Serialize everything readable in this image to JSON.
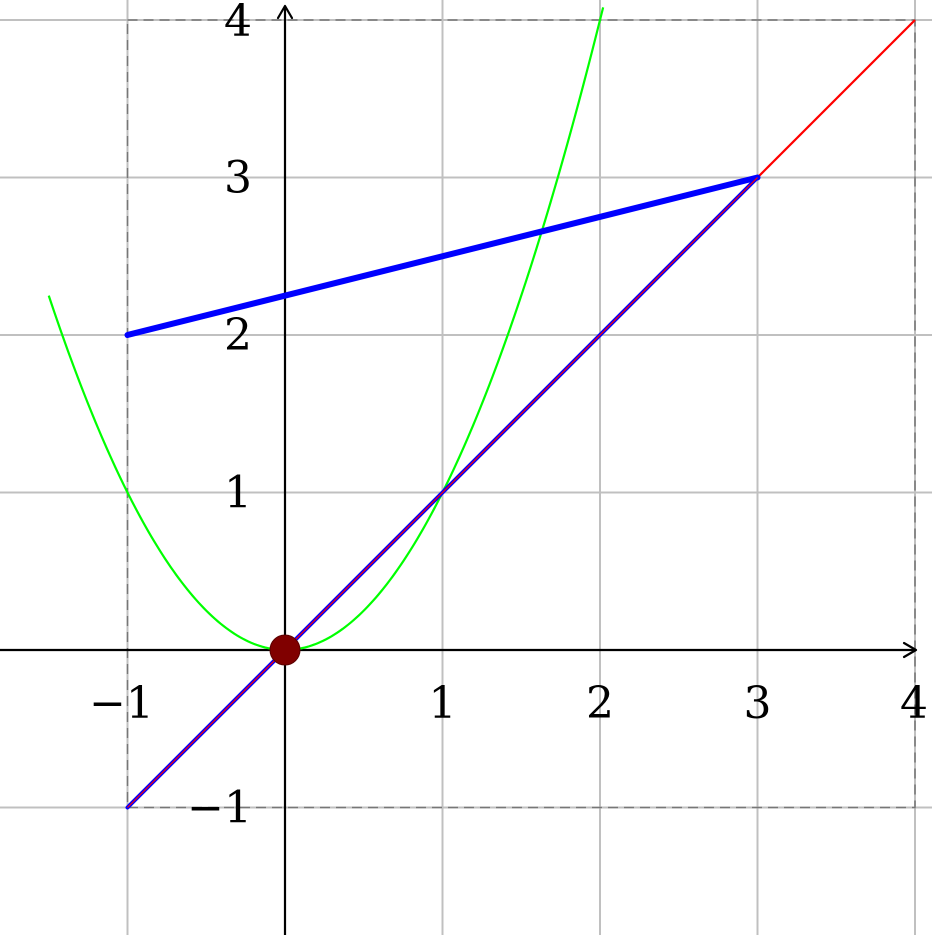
{
  "chart_data": {
    "type": "line",
    "title": "",
    "xlabel": "",
    "ylabel": "",
    "xlim": [
      -1.8,
      4.05
    ],
    "ylim": [
      -1.8,
      4.1
    ],
    "grid": true,
    "x_ticks": [
      {
        "value": -1,
        "label": "−1"
      },
      {
        "value": 1,
        "label": "1"
      },
      {
        "value": 2,
        "label": "2"
      },
      {
        "value": 3,
        "label": "3"
      },
      {
        "value": 4,
        "label": "4"
      }
    ],
    "y_ticks": [
      {
        "value": -1,
        "label": "−1"
      },
      {
        "value": 1,
        "label": "1"
      },
      {
        "value": 2,
        "label": "2"
      },
      {
        "value": 3,
        "label": "3"
      },
      {
        "value": 4,
        "label": "4"
      }
    ],
    "dashed_box": {
      "x": [
        -1,
        4
      ],
      "y": [
        -1,
        4
      ]
    },
    "series": [
      {
        "kind": "function",
        "formula": "y = x",
        "domain": [
          -1,
          4
        ],
        "color": "#ff0000"
      },
      {
        "kind": "function",
        "formula": "y = x^2",
        "domain": [
          -1.5,
          2.02
        ],
        "color": "#00ff00"
      },
      {
        "kind": "segments",
        "color": "#0000ff",
        "points": [
          [
            -1,
            -1
          ],
          [
            3,
            3
          ],
          [
            -1,
            2
          ]
        ]
      }
    ],
    "marker": {
      "x": 0,
      "y": 0,
      "color": "#800000"
    }
  }
}
